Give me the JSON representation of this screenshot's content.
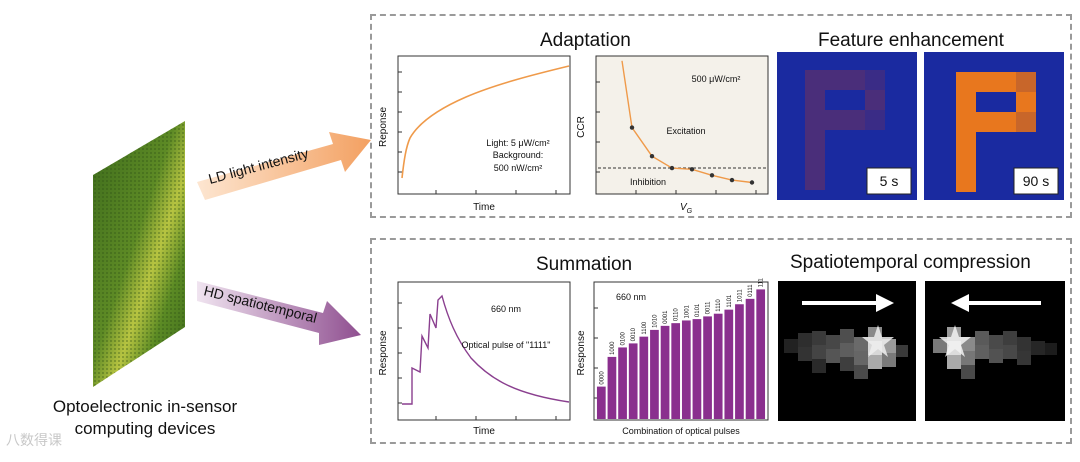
{
  "device": {
    "line1": "Optoelectronic in-sensor",
    "line2": "computing devices"
  },
  "arrows": {
    "top_label": "LD light intensity",
    "bottom_label": "HD spatiotemporal",
    "top_color": "#f3a061",
    "bottom_color": "#9a5a9a"
  },
  "top_panel": {
    "adaptation": {
      "title": "Adaptation",
      "plot1": {
        "xlabel": "Time",
        "ylabel": "Reponse",
        "note1": "Light: 5 μW/cm²",
        "note2": "Background:",
        "note3": "500 nW/cm²"
      },
      "plot2": {
        "ylabel": "CCR",
        "xlabel": "VG",
        "note": "500 μW/cm²",
        "excitation": "Excitation",
        "inhibition": "Inhibition"
      }
    },
    "feature": {
      "title": "Feature enhancement",
      "label1": "5 s",
      "label2": "90 s"
    }
  },
  "bottom_panel": {
    "summation": {
      "title": "Summation",
      "plot1": {
        "xlabel": "Time",
        "ylabel": "Response",
        "note1": "660 nm",
        "note2": "Optical pulse of \"1111\""
      },
      "plot2": {
        "ylabel": "Response",
        "xlabel": "Combination of optical pulses",
        "note": "660 nm"
      }
    },
    "spatiotemporal": {
      "title": "Spatiotemporal compression"
    }
  },
  "chart_data": [
    {
      "type": "bar",
      "title": "",
      "xlabel": "Combination of optical pulses",
      "ylabel": "Response",
      "categories": [
        "0000",
        "1000",
        "0100",
        "0010",
        "1100",
        "1010",
        "0001",
        "0110",
        "1001",
        "0101",
        "0011",
        "1110",
        "1101",
        "1011",
        "0111",
        "1111"
      ],
      "values": [
        0.24,
        0.46,
        0.53,
        0.56,
        0.61,
        0.66,
        0.69,
        0.71,
        0.73,
        0.74,
        0.76,
        0.78,
        0.81,
        0.85,
        0.89,
        0.96
      ],
      "ylim": [
        0,
        1
      ]
    },
    {
      "type": "scatter",
      "xlabel": "VG",
      "ylabel": "CCR",
      "points": [
        1.0,
        0.72,
        0.6,
        0.55,
        0.545,
        0.52,
        0.5,
        0.49
      ],
      "threshold": 0.55
    }
  ],
  "watermark": "八数得课"
}
